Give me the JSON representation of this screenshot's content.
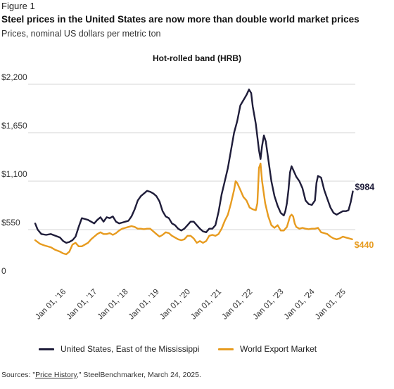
{
  "figure_label": "Figure 1",
  "title": "Steel prices in the United States are now more than double world market prices",
  "subtitle": "Prices, nominal US dollars per metric ton",
  "source": {
    "prefix": "Sources: \"",
    "link_text": "Price History",
    "suffix": ",\" SteelBenchmarker, March 24, 2025."
  },
  "chart_data": {
    "type": "line",
    "title": "Hot-rolled band (HRB)",
    "xlabel": "",
    "ylabel": "",
    "ylim": [
      0,
      2200
    ],
    "xlim": [
      2015.0,
      2025.3
    ],
    "y_ticks": [
      {
        "value": 0,
        "label": "0"
      },
      {
        "value": 550,
        "label": "$550"
      },
      {
        "value": 1100,
        "label": "$1,100"
      },
      {
        "value": 1650,
        "label": "$1,650"
      },
      {
        "value": 2200,
        "label": "$2,200"
      }
    ],
    "x_ticks": [
      {
        "value": 2016,
        "label": "Jan 01, '16"
      },
      {
        "value": 2017,
        "label": "Jan 01, '17"
      },
      {
        "value": 2018,
        "label": "Jan 01, '18"
      },
      {
        "value": 2019,
        "label": "Jan 01, '19"
      },
      {
        "value": 2020,
        "label": "Jan 01, '20"
      },
      {
        "value": 2021,
        "label": "Jan 01, '21"
      },
      {
        "value": 2022,
        "label": "Jan 01, '22"
      },
      {
        "value": 2023,
        "label": "Jan 01, '23"
      },
      {
        "value": 2024,
        "label": "Jan 01, '24"
      },
      {
        "value": 2025,
        "label": "Jan 01, '25"
      }
    ],
    "grid": true,
    "legend_position": "bottom",
    "series": [
      {
        "name": "United States, East of the Mississippi",
        "color": "#1f1d3a",
        "end_label": "$984",
        "points": [
          [
            2015.0,
            620
          ],
          [
            2015.08,
            550
          ],
          [
            2015.2,
            500
          ],
          [
            2015.35,
            490
          ],
          [
            2015.5,
            500
          ],
          [
            2015.65,
            480
          ],
          [
            2015.8,
            460
          ],
          [
            2015.9,
            420
          ],
          [
            2016.0,
            400
          ],
          [
            2016.1,
            410
          ],
          [
            2016.2,
            430
          ],
          [
            2016.3,
            470
          ],
          [
            2016.4,
            580
          ],
          [
            2016.5,
            680
          ],
          [
            2016.6,
            670
          ],
          [
            2016.7,
            660
          ],
          [
            2016.8,
            640
          ],
          [
            2016.9,
            620
          ],
          [
            2017.0,
            660
          ],
          [
            2017.1,
            690
          ],
          [
            2017.2,
            640
          ],
          [
            2017.3,
            690
          ],
          [
            2017.4,
            680
          ],
          [
            2017.5,
            700
          ],
          [
            2017.6,
            640
          ],
          [
            2017.7,
            620
          ],
          [
            2017.8,
            630
          ],
          [
            2017.9,
            640
          ],
          [
            2018.0,
            650
          ],
          [
            2018.1,
            700
          ],
          [
            2018.2,
            780
          ],
          [
            2018.3,
            880
          ],
          [
            2018.4,
            930
          ],
          [
            2018.5,
            960
          ],
          [
            2018.6,
            990
          ],
          [
            2018.7,
            980
          ],
          [
            2018.8,
            960
          ],
          [
            2018.9,
            930
          ],
          [
            2019.0,
            870
          ],
          [
            2019.1,
            760
          ],
          [
            2019.2,
            700
          ],
          [
            2019.3,
            680
          ],
          [
            2019.4,
            620
          ],
          [
            2019.5,
            600
          ],
          [
            2019.6,
            560
          ],
          [
            2019.7,
            540
          ],
          [
            2019.8,
            560
          ],
          [
            2019.9,
            600
          ],
          [
            2020.0,
            640
          ],
          [
            2020.1,
            640
          ],
          [
            2020.2,
            600
          ],
          [
            2020.3,
            560
          ],
          [
            2020.4,
            530
          ],
          [
            2020.5,
            520
          ],
          [
            2020.6,
            560
          ],
          [
            2020.7,
            560
          ],
          [
            2020.8,
            600
          ],
          [
            2020.9,
            750
          ],
          [
            2021.0,
            950
          ],
          [
            2021.1,
            1100
          ],
          [
            2021.2,
            1250
          ],
          [
            2021.3,
            1450
          ],
          [
            2021.4,
            1650
          ],
          [
            2021.5,
            1780
          ],
          [
            2021.6,
            1960
          ],
          [
            2021.7,
            2020
          ],
          [
            2021.8,
            2080
          ],
          [
            2021.88,
            2140
          ],
          [
            2021.95,
            2100
          ],
          [
            2022.0,
            1950
          ],
          [
            2022.1,
            1750
          ],
          [
            2022.2,
            1450
          ],
          [
            2022.25,
            1350
          ],
          [
            2022.3,
            1500
          ],
          [
            2022.36,
            1620
          ],
          [
            2022.42,
            1550
          ],
          [
            2022.5,
            1350
          ],
          [
            2022.6,
            1100
          ],
          [
            2022.7,
            930
          ],
          [
            2022.8,
            820
          ],
          [
            2022.9,
            740
          ],
          [
            2023.0,
            710
          ],
          [
            2023.05,
            760
          ],
          [
            2023.1,
            850
          ],
          [
            2023.15,
            1000
          ],
          [
            2023.2,
            1200
          ],
          [
            2023.25,
            1270
          ],
          [
            2023.3,
            1230
          ],
          [
            2023.4,
            1150
          ],
          [
            2023.5,
            1100
          ],
          [
            2023.6,
            1020
          ],
          [
            2023.7,
            880
          ],
          [
            2023.8,
            840
          ],
          [
            2023.9,
            830
          ],
          [
            2024.0,
            880
          ],
          [
            2024.05,
            1080
          ],
          [
            2024.1,
            1160
          ],
          [
            2024.2,
            1140
          ],
          [
            2024.3,
            1000
          ],
          [
            2024.4,
            900
          ],
          [
            2024.5,
            800
          ],
          [
            2024.6,
            740
          ],
          [
            2024.7,
            720
          ],
          [
            2024.8,
            740
          ],
          [
            2024.9,
            760
          ],
          [
            2025.0,
            760
          ],
          [
            2025.08,
            770
          ],
          [
            2025.15,
            860
          ],
          [
            2025.22,
            984
          ]
        ]
      },
      {
        "name": "World Export Market",
        "color": "#e79b1f",
        "end_label": "$440",
        "points": [
          [
            2015.0,
            430
          ],
          [
            2015.15,
            390
          ],
          [
            2015.3,
            370
          ],
          [
            2015.5,
            350
          ],
          [
            2015.65,
            320
          ],
          [
            2015.8,
            300
          ],
          [
            2015.9,
            280
          ],
          [
            2016.0,
            270
          ],
          [
            2016.1,
            300
          ],
          [
            2016.2,
            380
          ],
          [
            2016.3,
            400
          ],
          [
            2016.4,
            360
          ],
          [
            2016.5,
            360
          ],
          [
            2016.6,
            380
          ],
          [
            2016.7,
            400
          ],
          [
            2016.8,
            440
          ],
          [
            2016.9,
            470
          ],
          [
            2017.0,
            500
          ],
          [
            2017.1,
            520
          ],
          [
            2017.2,
            500
          ],
          [
            2017.3,
            500
          ],
          [
            2017.4,
            510
          ],
          [
            2017.5,
            490
          ],
          [
            2017.6,
            510
          ],
          [
            2017.7,
            540
          ],
          [
            2017.8,
            560
          ],
          [
            2017.9,
            570
          ],
          [
            2018.0,
            580
          ],
          [
            2018.1,
            590
          ],
          [
            2018.2,
            580
          ],
          [
            2018.3,
            560
          ],
          [
            2018.4,
            560
          ],
          [
            2018.5,
            555
          ],
          [
            2018.6,
            560
          ],
          [
            2018.7,
            560
          ],
          [
            2018.8,
            530
          ],
          [
            2018.9,
            500
          ],
          [
            2019.0,
            470
          ],
          [
            2019.1,
            490
          ],
          [
            2019.2,
            520
          ],
          [
            2019.3,
            510
          ],
          [
            2019.4,
            480
          ],
          [
            2019.5,
            460
          ],
          [
            2019.6,
            440
          ],
          [
            2019.7,
            430
          ],
          [
            2019.8,
            440
          ],
          [
            2019.9,
            480
          ],
          [
            2020.0,
            480
          ],
          [
            2020.1,
            450
          ],
          [
            2020.2,
            400
          ],
          [
            2020.3,
            420
          ],
          [
            2020.4,
            400
          ],
          [
            2020.5,
            420
          ],
          [
            2020.6,
            480
          ],
          [
            2020.7,
            490
          ],
          [
            2020.8,
            480
          ],
          [
            2020.9,
            500
          ],
          [
            2021.0,
            560
          ],
          [
            2021.1,
            650
          ],
          [
            2021.2,
            720
          ],
          [
            2021.3,
            850
          ],
          [
            2021.4,
            1000
          ],
          [
            2021.45,
            1100
          ],
          [
            2021.5,
            1080
          ],
          [
            2021.6,
            1000
          ],
          [
            2021.7,
            920
          ],
          [
            2021.8,
            880
          ],
          [
            2021.9,
            800
          ],
          [
            2022.0,
            780
          ],
          [
            2022.1,
            770
          ],
          [
            2022.15,
            850
          ],
          [
            2022.2,
            1250
          ],
          [
            2022.25,
            1300
          ],
          [
            2022.3,
            1100
          ],
          [
            2022.4,
            850
          ],
          [
            2022.5,
            700
          ],
          [
            2022.6,
            600
          ],
          [
            2022.7,
            570
          ],
          [
            2022.8,
            600
          ],
          [
            2022.9,
            540
          ],
          [
            2023.0,
            540
          ],
          [
            2023.1,
            580
          ],
          [
            2023.2,
            700
          ],
          [
            2023.25,
            720
          ],
          [
            2023.3,
            700
          ],
          [
            2023.35,
            620
          ],
          [
            2023.4,
            580
          ],
          [
            2023.5,
            560
          ],
          [
            2023.6,
            570
          ],
          [
            2023.7,
            560
          ],
          [
            2023.8,
            555
          ],
          [
            2023.9,
            560
          ],
          [
            2024.0,
            560
          ],
          [
            2024.1,
            570
          ],
          [
            2024.2,
            520
          ],
          [
            2024.3,
            510
          ],
          [
            2024.4,
            500
          ],
          [
            2024.5,
            470
          ],
          [
            2024.6,
            450
          ],
          [
            2024.7,
            440
          ],
          [
            2024.8,
            450
          ],
          [
            2024.9,
            470
          ],
          [
            2025.0,
            460
          ],
          [
            2025.1,
            450
          ],
          [
            2025.2,
            440
          ]
        ]
      }
    ]
  }
}
